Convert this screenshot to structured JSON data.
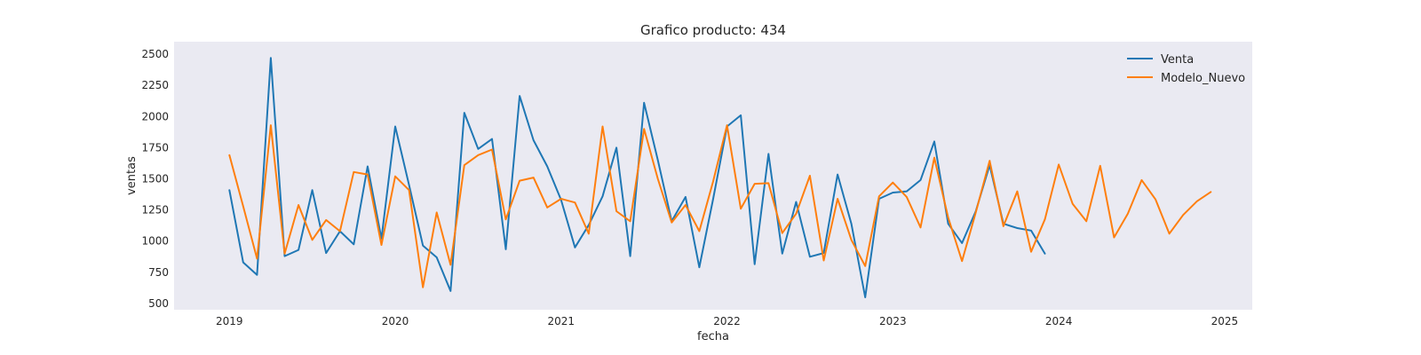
{
  "chart_data": {
    "type": "line",
    "title": "Grafico producto: 434",
    "xlabel": "fecha",
    "ylabel": "ventas",
    "xlim": [
      "2018-09-01",
      "2025-03-01"
    ],
    "ylim": [
      450,
      2600
    ],
    "x_ticks": [
      "2019",
      "2020",
      "2021",
      "2022",
      "2023",
      "2024",
      "2025"
    ],
    "y_ticks": [
      500,
      750,
      1000,
      1250,
      1500,
      1750,
      2000,
      2250,
      2500
    ],
    "grid": false,
    "legend_position": "top-right",
    "background": "#eaeaf2",
    "series": [
      {
        "name": "Venta",
        "color": "#1f77b4",
        "x": [
          "2019-01",
          "2019-02",
          "2019-03",
          "2019-04",
          "2019-05",
          "2019-06",
          "2019-07",
          "2019-08",
          "2019-09",
          "2019-10",
          "2019-11",
          "2019-12",
          "2020-01",
          "2020-02",
          "2020-03",
          "2020-04",
          "2020-05",
          "2020-06",
          "2020-07",
          "2020-08",
          "2020-09",
          "2020-10",
          "2020-11",
          "2020-12",
          "2021-01",
          "2021-02",
          "2021-03",
          "2021-04",
          "2021-05",
          "2021-06",
          "2021-07",
          "2021-08",
          "2021-09",
          "2021-10",
          "2021-11",
          "2021-12",
          "2022-01",
          "2022-02",
          "2022-03",
          "2022-04",
          "2022-05",
          "2022-06",
          "2022-07",
          "2022-08",
          "2022-09",
          "2022-10",
          "2022-11",
          "2022-12",
          "2023-01",
          "2023-02",
          "2023-03",
          "2023-04",
          "2023-05",
          "2023-06",
          "2023-07",
          "2023-08",
          "2023-09",
          "2023-10",
          "2023-11",
          "2023-12"
        ],
        "values": [
          1410,
          830,
          730,
          2470,
          880,
          930,
          1410,
          905,
          1080,
          975,
          1600,
          1020,
          1920,
          1450,
          965,
          870,
          600,
          2030,
          1740,
          1820,
          935,
          2165,
          1810,
          1600,
          1330,
          950,
          1130,
          1360,
          1750,
          880,
          2110,
          1650,
          1160,
          1355,
          790,
          1340,
          1920,
          2010,
          815,
          1700,
          900,
          1315,
          875,
          905,
          1535,
          1140,
          550,
          1340,
          1390,
          1400,
          1490,
          1800,
          1140,
          985,
          1240,
          1610,
          1140,
          1105,
          1085,
          900
        ]
      },
      {
        "name": "Modelo_Nuevo",
        "color": "#ff7f0e",
        "x": [
          "2019-01",
          "2019-02",
          "2019-03",
          "2019-04",
          "2019-05",
          "2019-06",
          "2019-07",
          "2019-08",
          "2019-09",
          "2019-10",
          "2019-11",
          "2019-12",
          "2020-01",
          "2020-02",
          "2020-03",
          "2020-04",
          "2020-05",
          "2020-06",
          "2020-07",
          "2020-08",
          "2020-09",
          "2020-10",
          "2020-11",
          "2020-12",
          "2021-01",
          "2021-02",
          "2021-03",
          "2021-04",
          "2021-05",
          "2021-06",
          "2021-07",
          "2021-08",
          "2021-09",
          "2021-10",
          "2021-11",
          "2021-12",
          "2022-01",
          "2022-02",
          "2022-03",
          "2022-04",
          "2022-05",
          "2022-06",
          "2022-07",
          "2022-08",
          "2022-09",
          "2022-10",
          "2022-11",
          "2022-12",
          "2023-01",
          "2023-02",
          "2023-03",
          "2023-04",
          "2023-05",
          "2023-06",
          "2023-07",
          "2023-08",
          "2023-09",
          "2023-10",
          "2023-11",
          "2023-12",
          "2024-01",
          "2024-02",
          "2024-03",
          "2024-04",
          "2024-05",
          "2024-06",
          "2024-07",
          "2024-08",
          "2024-09",
          "2024-10",
          "2024-11",
          "2024-12"
        ],
        "values": [
          1690,
          1280,
          860,
          1930,
          900,
          1290,
          1010,
          1170,
          1080,
          1555,
          1535,
          970,
          1520,
          1410,
          630,
          1230,
          810,
          1610,
          1690,
          1735,
          1175,
          1485,
          1510,
          1270,
          1340,
          1310,
          1060,
          1920,
          1240,
          1160,
          1900,
          1500,
          1150,
          1290,
          1080,
          1480,
          1930,
          1260,
          1460,
          1465,
          1065,
          1220,
          1525,
          845,
          1340,
          1010,
          800,
          1360,
          1470,
          1355,
          1110,
          1670,
          1190,
          840,
          1230,
          1645,
          1120,
          1400,
          915,
          1175,
          1615,
          1300,
          1160,
          1605,
          1030,
          1220,
          1490,
          1335,
          1060,
          1210,
          1320,
          1395
        ]
      }
    ]
  }
}
